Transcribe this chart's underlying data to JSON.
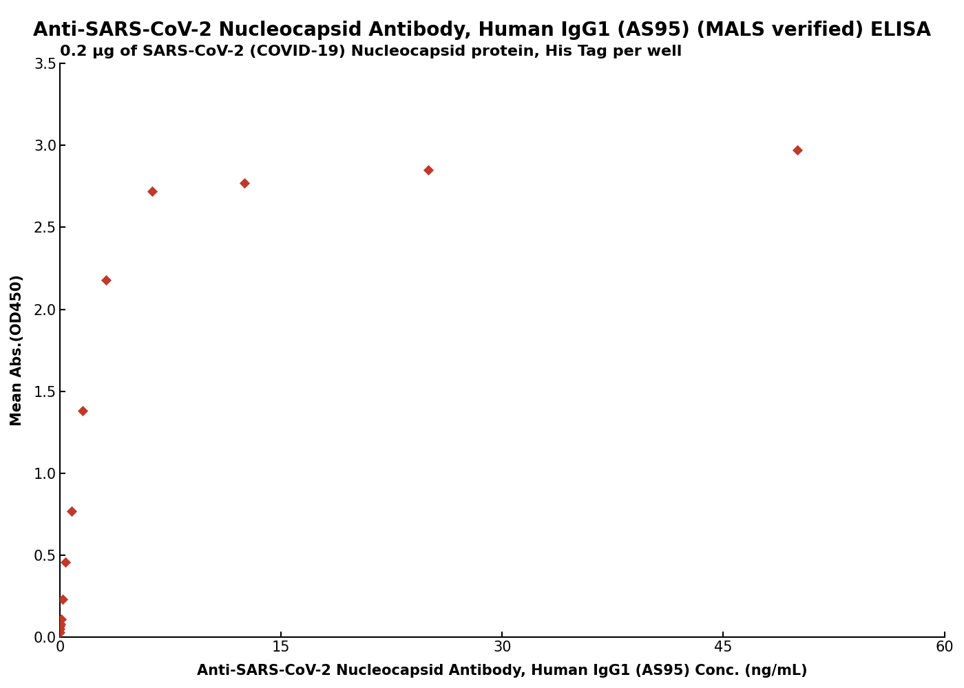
{
  "title": "Anti-SARS-CoV-2 Nucleocapsid Antibody, Human IgG1 (AS95) (MALS verified) ELISA",
  "subtitle": "0.2 μg of SARS-CoV-2 (COVID-19) Nucleocapsid protein, His Tag per well",
  "xlabel": "Anti-SARS-CoV-2 Nucleocapsid Antibody, Human IgG1 (AS95) Conc. (ng/mL)",
  "ylabel": "Mean Abs.(OD450)",
  "x_data": [
    0.0,
    0.006,
    0.012,
    0.025,
    0.05,
    0.1,
    0.2,
    0.39,
    0.78,
    1.56,
    3.13,
    6.25,
    12.5,
    25.0,
    50.0
  ],
  "y_data": [
    0.02,
    0.03,
    0.05,
    0.07,
    0.08,
    0.11,
    0.23,
    0.46,
    0.77,
    1.38,
    2.18,
    2.72,
    2.77,
    2.85,
    2.97
  ],
  "xlim": [
    0,
    60
  ],
  "ylim": [
    0,
    3.5
  ],
  "xticks": [
    0,
    15,
    30,
    45,
    60
  ],
  "yticks": [
    0.0,
    0.5,
    1.0,
    1.5,
    2.0,
    2.5,
    3.0,
    3.5
  ],
  "line_color": "#C0392B",
  "marker_color": "#C0392B",
  "title_fontsize": 20,
  "subtitle_fontsize": 16,
  "label_fontsize": 15,
  "tick_fontsize": 15,
  "background_color": "#ffffff"
}
